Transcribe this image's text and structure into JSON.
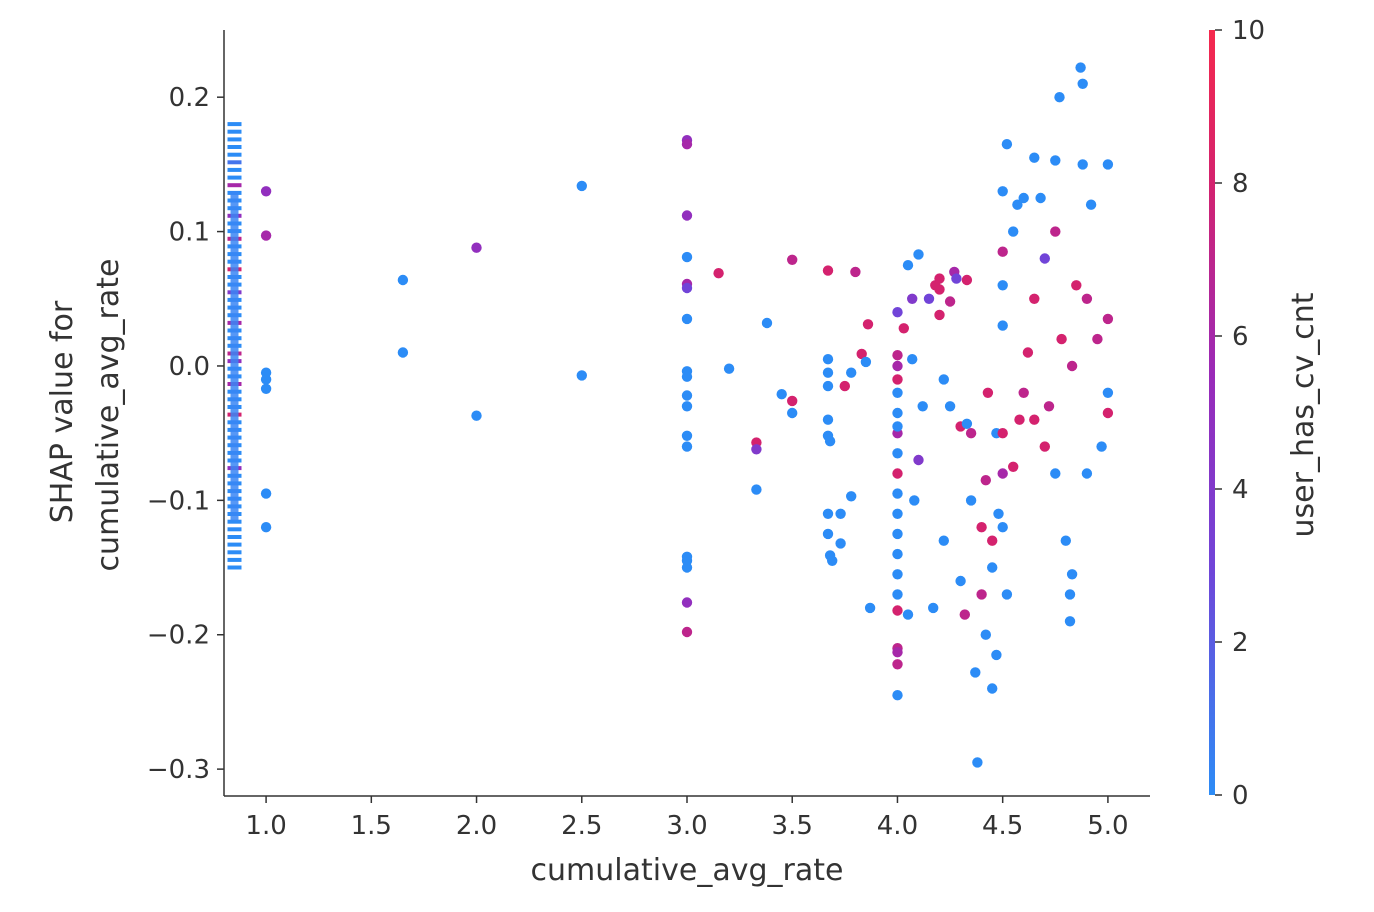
{
  "chart_data": {
    "type": "scatter",
    "xlabel": "cumulative_avg_rate",
    "ylabel_lines": [
      "SHAP value for",
      "cumulative_avg_rate"
    ],
    "xlim": [
      0.8,
      5.2
    ],
    "ylim": [
      -0.32,
      0.25
    ],
    "xticks": [
      1.0,
      1.5,
      2.0,
      2.5,
      3.0,
      3.5,
      4.0,
      4.5,
      5.0
    ],
    "xtick_labels": [
      "1.0",
      "1.5",
      "2.0",
      "2.5",
      "3.0",
      "3.5",
      "4.0",
      "4.5",
      "5.0"
    ],
    "yticks": [
      0.2,
      0.1,
      0.0,
      -0.1,
      -0.2,
      -0.3
    ],
    "ytick_labels": [
      "0.2",
      "0.1",
      "0.0",
      "−0.1",
      "−0.2",
      "−0.3"
    ],
    "grid": false,
    "colorbar": {
      "label": "user_has_cv_cnt",
      "range": [
        0,
        10
      ],
      "ticks": [
        0,
        2,
        4,
        6,
        8,
        10
      ],
      "tick_labels": [
        "0",
        "2",
        "4",
        "6",
        "8",
        "10"
      ],
      "colors": [
        "#2c8cf6",
        "#7144d8",
        "#9a2ab8",
        "#d4226e",
        "#f5294d"
      ]
    },
    "missing_feature_strip": {
      "x": 0.85,
      "y_range": [
        -0.15,
        0.18
      ],
      "note": "horizontal bar markers for missing feature values"
    },
    "points": [
      [
        1.0,
        0.13,
        5
      ],
      [
        1.0,
        0.097,
        6
      ],
      [
        1.0,
        -0.005,
        0
      ],
      [
        1.0,
        -0.01,
        0
      ],
      [
        1.0,
        -0.017,
        0
      ],
      [
        1.0,
        -0.095,
        0
      ],
      [
        1.0,
        -0.12,
        0
      ],
      [
        1.65,
        0.064,
        0
      ],
      [
        1.65,
        0.01,
        0
      ],
      [
        2.0,
        0.088,
        5
      ],
      [
        2.0,
        -0.037,
        0
      ],
      [
        2.5,
        0.134,
        0
      ],
      [
        2.5,
        -0.007,
        0
      ],
      [
        3.0,
        0.168,
        5
      ],
      [
        3.0,
        0.165,
        6
      ],
      [
        3.0,
        0.112,
        5
      ],
      [
        3.0,
        0.081,
        0
      ],
      [
        3.0,
        0.061,
        6
      ],
      [
        3.0,
        0.058,
        3
      ],
      [
        3.0,
        0.035,
        0
      ],
      [
        3.0,
        -0.004,
        0
      ],
      [
        3.0,
        -0.008,
        0
      ],
      [
        3.0,
        -0.022,
        0
      ],
      [
        3.0,
        -0.03,
        0
      ],
      [
        3.0,
        -0.052,
        0
      ],
      [
        3.0,
        -0.06,
        0
      ],
      [
        3.0,
        -0.142,
        0
      ],
      [
        3.0,
        -0.145,
        0
      ],
      [
        3.0,
        -0.15,
        0
      ],
      [
        3.0,
        -0.176,
        5
      ],
      [
        3.0,
        -0.198,
        7
      ],
      [
        3.15,
        0.069,
        8
      ],
      [
        3.2,
        -0.002,
        0
      ],
      [
        3.33,
        -0.057,
        8
      ],
      [
        3.33,
        -0.062,
        4
      ],
      [
        3.33,
        -0.092,
        0
      ],
      [
        3.38,
        0.032,
        0
      ],
      [
        3.45,
        -0.021,
        0
      ],
      [
        3.5,
        0.079,
        7
      ],
      [
        3.5,
        -0.026,
        8
      ],
      [
        3.5,
        -0.035,
        0
      ],
      [
        3.67,
        0.071,
        8
      ],
      [
        3.67,
        0.005,
        0
      ],
      [
        3.67,
        -0.005,
        0
      ],
      [
        3.67,
        -0.015,
        0
      ],
      [
        3.67,
        -0.04,
        0
      ],
      [
        3.67,
        -0.052,
        0
      ],
      [
        3.68,
        -0.056,
        0
      ],
      [
        3.67,
        -0.11,
        0
      ],
      [
        3.67,
        -0.125,
        0
      ],
      [
        3.68,
        -0.141,
        0
      ],
      [
        3.69,
        -0.145,
        0
      ],
      [
        3.73,
        -0.11,
        0
      ],
      [
        3.73,
        -0.132,
        0
      ],
      [
        3.75,
        -0.015,
        8
      ],
      [
        3.78,
        -0.097,
        0
      ],
      [
        3.78,
        -0.005,
        0
      ],
      [
        3.8,
        0.07,
        7
      ],
      [
        3.83,
        0.009,
        8
      ],
      [
        3.85,
        0.003,
        0
      ],
      [
        3.86,
        0.031,
        8
      ],
      [
        3.87,
        -0.18,
        0
      ],
      [
        4.0,
        0.008,
        7
      ],
      [
        4.0,
        0.0,
        6
      ],
      [
        4.0,
        -0.01,
        8
      ],
      [
        4.0,
        -0.02,
        0
      ],
      [
        4.0,
        -0.035,
        0
      ],
      [
        4.0,
        -0.05,
        6
      ],
      [
        4.0,
        -0.065,
        0
      ],
      [
        4.0,
        -0.08,
        8
      ],
      [
        4.0,
        -0.095,
        0
      ],
      [
        4.0,
        -0.11,
        0
      ],
      [
        4.0,
        -0.125,
        0
      ],
      [
        4.0,
        -0.14,
        0
      ],
      [
        4.0,
        -0.155,
        0
      ],
      [
        4.0,
        -0.17,
        0
      ],
      [
        4.0,
        -0.182,
        8
      ],
      [
        4.0,
        -0.21,
        7
      ],
      [
        4.0,
        -0.213,
        6
      ],
      [
        4.0,
        -0.222,
        7
      ],
      [
        4.0,
        -0.245,
        0
      ],
      [
        4.0,
        0.04,
        3
      ],
      [
        4.0,
        -0.045,
        0
      ],
      [
        4.03,
        0.028,
        8
      ],
      [
        4.05,
        0.075,
        0
      ],
      [
        4.05,
        -0.185,
        0
      ],
      [
        4.07,
        0.05,
        4
      ],
      [
        4.07,
        0.005,
        0
      ],
      [
        4.08,
        -0.1,
        0
      ],
      [
        4.1,
        0.083,
        0
      ],
      [
        4.1,
        -0.07,
        4
      ],
      [
        4.12,
        -0.03,
        0
      ],
      [
        4.15,
        0.05,
        3
      ],
      [
        4.17,
        -0.18,
        0
      ],
      [
        4.18,
        0.06,
        8
      ],
      [
        4.2,
        0.065,
        8
      ],
      [
        4.2,
        0.057,
        8
      ],
      [
        4.2,
        0.038,
        8
      ],
      [
        4.22,
        -0.01,
        0
      ],
      [
        4.22,
        -0.13,
        0
      ],
      [
        4.25,
        -0.03,
        0
      ],
      [
        4.25,
        0.048,
        7
      ],
      [
        4.27,
        0.07,
        6
      ],
      [
        4.28,
        0.065,
        3
      ],
      [
        4.3,
        -0.045,
        8
      ],
      [
        4.3,
        -0.16,
        0
      ],
      [
        4.32,
        -0.185,
        7
      ],
      [
        4.33,
        -0.043,
        0
      ],
      [
        4.33,
        0.064,
        8
      ],
      [
        4.35,
        -0.05,
        7
      ],
      [
        4.35,
        -0.1,
        0
      ],
      [
        4.37,
        -0.228,
        0
      ],
      [
        4.38,
        -0.295,
        0
      ],
      [
        4.4,
        -0.17,
        7
      ],
      [
        4.4,
        -0.12,
        8
      ],
      [
        4.42,
        -0.085,
        7
      ],
      [
        4.42,
        -0.2,
        0
      ],
      [
        4.43,
        -0.02,
        8
      ],
      [
        4.45,
        -0.24,
        0
      ],
      [
        4.45,
        -0.15,
        0
      ],
      [
        4.45,
        -0.13,
        8
      ],
      [
        4.47,
        -0.215,
        0
      ],
      [
        4.47,
        -0.05,
        0
      ],
      [
        4.48,
        -0.11,
        0
      ],
      [
        4.5,
        0.13,
        0
      ],
      [
        4.5,
        0.085,
        7
      ],
      [
        4.5,
        0.06,
        0
      ],
      [
        4.5,
        0.03,
        0
      ],
      [
        4.5,
        -0.05,
        8
      ],
      [
        4.5,
        -0.08,
        6
      ],
      [
        4.5,
        -0.12,
        0
      ],
      [
        4.52,
        0.165,
        0
      ],
      [
        4.52,
        -0.17,
        0
      ],
      [
        4.55,
        0.1,
        0
      ],
      [
        4.55,
        -0.075,
        8
      ],
      [
        4.57,
        0.12,
        0
      ],
      [
        4.58,
        -0.04,
        8
      ],
      [
        4.6,
        0.125,
        0
      ],
      [
        4.6,
        -0.02,
        7
      ],
      [
        4.62,
        0.01,
        8
      ],
      [
        4.65,
        0.155,
        0
      ],
      [
        4.65,
        0.05,
        8
      ],
      [
        4.65,
        -0.04,
        8
      ],
      [
        4.68,
        0.125,
        0
      ],
      [
        4.7,
        0.08,
        3
      ],
      [
        4.7,
        -0.06,
        8
      ],
      [
        4.72,
        -0.03,
        7
      ],
      [
        4.75,
        0.153,
        0
      ],
      [
        4.75,
        0.1,
        7
      ],
      [
        4.75,
        -0.08,
        0
      ],
      [
        4.77,
        0.2,
        0
      ],
      [
        4.78,
        0.02,
        8
      ],
      [
        4.8,
        -0.13,
        0
      ],
      [
        4.82,
        -0.19,
        0
      ],
      [
        4.82,
        -0.17,
        0
      ],
      [
        4.83,
        -0.155,
        0
      ],
      [
        4.83,
        0.0,
        7
      ],
      [
        4.85,
        0.06,
        8
      ],
      [
        4.87,
        0.222,
        0
      ],
      [
        4.88,
        0.21,
        0
      ],
      [
        4.88,
        0.15,
        0
      ],
      [
        4.9,
        0.05,
        7
      ],
      [
        4.9,
        -0.08,
        0
      ],
      [
        4.92,
        0.12,
        0
      ],
      [
        4.95,
        0.02,
        7
      ],
      [
        4.97,
        -0.06,
        0
      ],
      [
        5.0,
        0.15,
        0
      ],
      [
        5.0,
        0.035,
        7
      ],
      [
        5.0,
        -0.035,
        8
      ],
      [
        5.0,
        -0.02,
        0
      ]
    ]
  }
}
